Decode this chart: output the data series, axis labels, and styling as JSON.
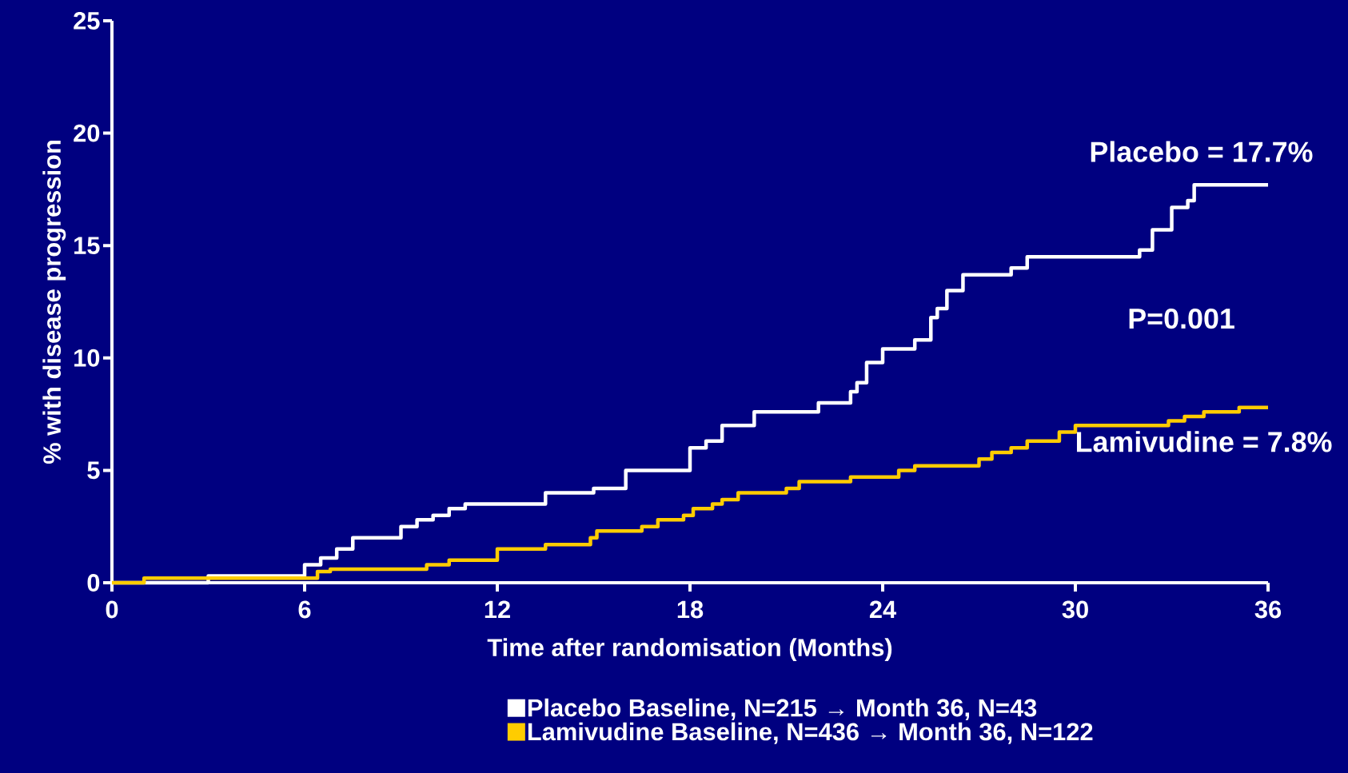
{
  "chart_data": {
    "type": "step",
    "xlabel": "Time after randomisation (Months)",
    "ylabel": "% with disease progression",
    "xlim": [
      0,
      36
    ],
    "xticks": [
      0,
      6,
      12,
      18,
      24,
      30,
      36
    ],
    "ylim": [
      0,
      25
    ],
    "yticks": [
      0,
      5,
      10,
      15,
      20,
      25
    ],
    "legend": "bottom",
    "grid": false,
    "series": [
      {
        "name": "Placebo Baseline, N=215 → Month 36, N=43",
        "color": "#ffffff",
        "x": [
          0,
          3,
          6,
          6.5,
          7,
          7.5,
          9,
          9.5,
          10,
          10.5,
          11,
          13.5,
          15,
          16,
          18,
          18.5,
          19,
          20,
          22,
          23.0,
          23.2,
          23.5,
          24.0,
          25.0,
          25.5,
          25.7,
          26.0,
          26.5,
          28.0,
          28.5,
          32.0,
          32.4,
          33.0,
          33.5,
          33.7,
          36
        ],
        "values": [
          0,
          0.3,
          0.8,
          1.1,
          1.5,
          2.0,
          2.5,
          2.8,
          3.0,
          3.3,
          3.5,
          4.0,
          4.2,
          5.0,
          6.0,
          6.3,
          7.0,
          7.6,
          8.0,
          8.5,
          8.9,
          9.8,
          10.4,
          10.8,
          11.8,
          12.2,
          13.0,
          13.7,
          14.0,
          14.5,
          14.8,
          15.7,
          16.7,
          17.0,
          17.7,
          17.7
        ]
      },
      {
        "name": "Lamivudine Baseline, N=436 → Month 36, N=122",
        "color": "#ffcc00",
        "x": [
          0,
          1,
          6.4,
          6.8,
          9.8,
          10.5,
          12,
          13.5,
          14.9,
          15.1,
          16.5,
          17,
          17.8,
          18.1,
          18.7,
          19,
          19.5,
          21.0,
          21.4,
          23.0,
          24.5,
          25.0,
          27.0,
          27.4,
          28,
          28.5,
          29.5,
          30,
          32.9,
          33.4,
          34.0,
          35.1,
          36
        ],
        "values": [
          0,
          0.2,
          0.5,
          0.6,
          0.8,
          1.0,
          1.5,
          1.7,
          2.0,
          2.3,
          2.5,
          2.8,
          3.0,
          3.3,
          3.5,
          3.7,
          4.0,
          4.2,
          4.5,
          4.7,
          5.0,
          5.2,
          5.5,
          5.8,
          6.0,
          6.3,
          6.7,
          7.0,
          7.2,
          7.4,
          7.6,
          7.8,
          7.8
        ]
      }
    ],
    "annotations": [
      {
        "text": "Placebo = 17.7%",
        "x": 36,
        "y": 17.7
      },
      "P=0.001",
      {
        "text": "Lamivudine = 7.8%",
        "x": 36,
        "y": 7.8
      }
    ]
  }
}
